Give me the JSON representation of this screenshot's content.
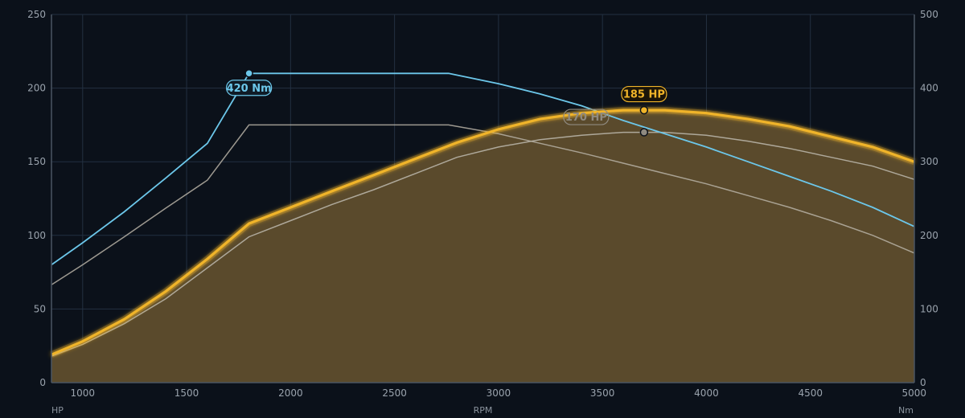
{
  "chart_data": {
    "type": "line",
    "title": "",
    "xlabel": "RPM",
    "ylabel_left": "HP",
    "ylabel_right": "Nm",
    "xlim": [
      850,
      5000
    ],
    "ylim_left": [
      0,
      250
    ],
    "ylim_right": [
      0,
      500
    ],
    "x_ticks": [
      1000,
      1500,
      2000,
      2500,
      3000,
      3500,
      4000,
      4500,
      5000
    ],
    "y_left_ticks": [
      0,
      50,
      100,
      150,
      200,
      250
    ],
    "y_right_ticks": [
      0,
      100,
      200,
      300,
      400,
      500
    ],
    "grid": true,
    "colors": {
      "hp_tuned": "#f0b429",
      "hp_area": "#5a4a2c",
      "torque_tuned": "#6cc7ea",
      "stock": "#b7b2a6",
      "grid": "#233041",
      "axis": "#4a5562"
    },
    "series": [
      {
        "axis": "left",
        "x": [
          850,
          1000,
          1200,
          1400,
          1600,
          1800,
          2000,
          2200,
          2400,
          2600,
          2800,
          3000,
          3200,
          3400,
          3600,
          3800,
          4000,
          4200,
          4400,
          4600,
          4800,
          5000
        ],
        "values": [
          19,
          28,
          43,
          62,
          84,
          108,
          119,
          130,
          141,
          152,
          163,
          172,
          179,
          183,
          185,
          185,
          183,
          179,
          174,
          167,
          160,
          150
        ]
      },
      {
        "axis": "right",
        "x": [
          850,
          1000,
          1200,
          1400,
          1600,
          1800,
          2000,
          2200,
          2400,
          2600,
          2760,
          3000,
          3200,
          3400,
          3600,
          3800,
          4000,
          4200,
          4400,
          4600,
          4800,
          5000
        ],
        "values": [
          160,
          190,
          232,
          278,
          325,
          420,
          420,
          420,
          420,
          420,
          420,
          406,
          392,
          376,
          356,
          338,
          320,
          300,
          280,
          260,
          238,
          212
        ]
      },
      {
        "axis": "left",
        "x": [
          850,
          1000,
          1200,
          1400,
          1600,
          1800,
          2000,
          2200,
          2400,
          2600,
          2800,
          3000,
          3200,
          3400,
          3600,
          3800,
          4000,
          4200,
          4400,
          4600,
          4800,
          5000
        ],
        "values": [
          18,
          26,
          40,
          57,
          78,
          99,
          110,
          121,
          131,
          142,
          153,
          160,
          165,
          168,
          170,
          170,
          168,
          164,
          159,
          153,
          147,
          138
        ]
      },
      {
        "axis": "right",
        "x": [
          850,
          1000,
          1200,
          1400,
          1600,
          1800,
          2000,
          2200,
          2400,
          2600,
          2760,
          3000,
          3200,
          3400,
          3600,
          3800,
          4000,
          4200,
          4400,
          4600,
          4800,
          5000
        ],
        "values": [
          133,
          160,
          198,
          237,
          275,
          350,
          350,
          350,
          350,
          350,
          350,
          338,
          325,
          312,
          298,
          284,
          270,
          254,
          238,
          220,
          200,
          176
        ]
      }
    ],
    "annotations": [
      {
        "text": "420 Nm",
        "x": 1800,
        "value": 420,
        "axis": "right",
        "series": 1
      },
      {
        "text": "185 HP",
        "x": 3700,
        "value": 185,
        "axis": "left",
        "series": 0
      },
      {
        "text": "170 HP",
        "x": 3700,
        "value": 170,
        "axis": "left",
        "series": 2
      }
    ]
  }
}
